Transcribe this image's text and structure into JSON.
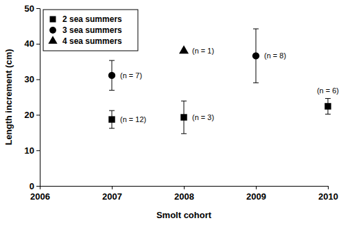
{
  "chart_data": {
    "type": "scatter",
    "x_label": "Smolt cohort",
    "y_label": "Length increment (cm)",
    "xlim": [
      2006,
      2010
    ],
    "xticks": [
      2006,
      2007,
      2008,
      2009,
      2010
    ],
    "ylim": [
      0,
      50
    ],
    "yticks": [
      0,
      10,
      20,
      30,
      40,
      50
    ],
    "legend": "upper left",
    "series": [
      {
        "name": "2 sea summers",
        "marker": "square",
        "color": "#000000",
        "x": [
          2007,
          2008,
          2010
        ],
        "values": [
          18.7,
          19.3,
          22.4
        ],
        "errors": [
          2.5,
          4.6,
          2.2
        ],
        "annotations": [
          "(n = 12)",
          "(n = 3)",
          "(n = 6)"
        ]
      },
      {
        "name": "3 sea summers",
        "marker": "circle",
        "color": "#000000",
        "x": [
          2007,
          2009
        ],
        "values": [
          31.1,
          36.6
        ],
        "errors": [
          4.2,
          7.6
        ],
        "annotations": [
          "(n = 7)",
          "(n = 8)"
        ]
      },
      {
        "name": "4 sea summers",
        "marker": "triangle",
        "color": "#000000",
        "x": [
          2008
        ],
        "values": [
          38
        ],
        "errors": [
          null
        ],
        "annotations": [
          "(n = 1)"
        ]
      }
    ]
  }
}
